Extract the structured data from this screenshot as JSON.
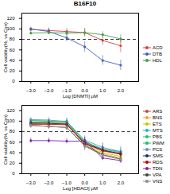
{
  "chart_data": [
    {
      "type": "line",
      "title": "B16F10",
      "x_label": "Log [DNMTI] μM",
      "y_label": "Cell viability(%, vs Con)",
      "x": [
        -3,
        -2,
        -1,
        0,
        1,
        2
      ],
      "xlim": [
        -3.5,
        3
      ],
      "xticks": [
        -3,
        -2,
        -1,
        0,
        1,
        2
      ],
      "ylim": [
        0,
        130
      ],
      "yticks": [
        0,
        20,
        40,
        60,
        80,
        100,
        120
      ],
      "reference_line": {
        "y": 80,
        "line_style": "dashed",
        "color": "black"
      },
      "grid": false,
      "legend": "right",
      "series": [
        {
          "name": "ACD",
          "color": "#d94040",
          "marker": "circle",
          "values": [
            99,
            97,
            95,
            93,
            78,
            68
          ],
          "errors": [
            4,
            5,
            6,
            8,
            9,
            13
          ]
        },
        {
          "name": "DTB",
          "color": "#4060c0",
          "marker": "circle",
          "values": [
            100,
            95,
            83,
            66,
            40,
            31
          ],
          "errors": [
            3,
            6,
            7,
            10,
            9,
            10
          ]
        },
        {
          "name": "HDL",
          "color": "#40a040",
          "marker": "circle",
          "values": [
            92,
            93,
            92,
            93,
            89,
            81
          ],
          "errors": [
            3,
            4,
            5,
            7,
            6,
            8
          ]
        }
      ]
    },
    {
      "type": "line",
      "x_label": "Log [HDACI] μM",
      "y_label": "Cell viability(%, vs Con)",
      "x": [
        -3,
        -2,
        -1,
        0,
        1,
        2
      ],
      "xlim": [
        -3.5,
        3
      ],
      "xticks": [
        -3,
        -2,
        -1,
        0,
        1,
        2
      ],
      "ylim": [
        0,
        130
      ],
      "yticks": [
        0,
        20,
        40,
        60,
        80,
        100,
        120
      ],
      "reference_line": {
        "y": 80,
        "line_style": "dashed",
        "color": "black"
      },
      "grid": false,
      "legend": "right",
      "series": [
        {
          "name": "ARS",
          "color": "#d94040",
          "marker": "circle",
          "values": [
            95,
            96,
            95,
            62,
            43,
            38
          ],
          "errors": [
            4,
            5,
            6,
            8,
            7,
            6
          ]
        },
        {
          "name": "BNS",
          "color": "#ffa020",
          "marker": "circle",
          "values": [
            97,
            97,
            96,
            58,
            40,
            33
          ],
          "errors": [
            4,
            5,
            5,
            7,
            6,
            5
          ]
        },
        {
          "name": "ETS",
          "color": "#c8c800",
          "marker": "circle",
          "values": [
            98,
            98,
            97,
            55,
            38,
            30
          ],
          "errors": [
            4,
            4,
            5,
            7,
            6,
            5
          ]
        },
        {
          "name": "MTS",
          "color": "#20b0e0",
          "marker": "circle",
          "values": [
            101,
            100,
            100,
            60,
            47,
            42
          ],
          "errors": [
            3,
            4,
            5,
            8,
            12,
            10
          ]
        },
        {
          "name": "PBS",
          "color": "#20c060",
          "marker": "circle",
          "values": [
            96,
            97,
            96,
            62,
            45,
            38
          ],
          "errors": [
            4,
            5,
            6,
            8,
            7,
            6
          ]
        },
        {
          "name": "PWM",
          "color": "#20c060",
          "marker": "square",
          "values": [
            101,
            100,
            99,
            60,
            47,
            40
          ],
          "errors": [
            4,
            5,
            6,
            8,
            7,
            6
          ]
        },
        {
          "name": "PCS",
          "color": "#6090d0",
          "marker": "circle",
          "values": [
            103,
            102,
            99,
            64,
            50,
            42
          ],
          "errors": [
            4,
            5,
            6,
            8,
            8,
            7
          ]
        },
        {
          "name": "SMS",
          "color": "#203060",
          "marker": "circle",
          "values": [
            97,
            96,
            94,
            58,
            45,
            38
          ],
          "errors": [
            4,
            5,
            5,
            7,
            7,
            5
          ]
        },
        {
          "name": "RDS",
          "color": "#c00000",
          "marker": "circle",
          "values": [
            94,
            94,
            93,
            57,
            44,
            37
          ],
          "errors": [
            4,
            5,
            5,
            7,
            6,
            5
          ]
        },
        {
          "name": "TDN",
          "color": "#8020b0",
          "marker": "circle",
          "values": [
            63,
            63,
            62,
            62,
            30,
            25
          ],
          "errors": [
            5,
            5,
            5,
            6,
            5,
            5
          ]
        },
        {
          "name": "VPA",
          "color": "#404040",
          "marker": "circle",
          "values": [
            92,
            90,
            88,
            54,
            36,
            28
          ],
          "errors": [
            5,
            5,
            6,
            8,
            7,
            6
          ]
        },
        {
          "name": "VNS",
          "color": "#909090",
          "marker": "square",
          "values": [
            92,
            90,
            88,
            52,
            35,
            27
          ],
          "errors": [
            5,
            5,
            6,
            8,
            7,
            6
          ]
        }
      ]
    }
  ]
}
